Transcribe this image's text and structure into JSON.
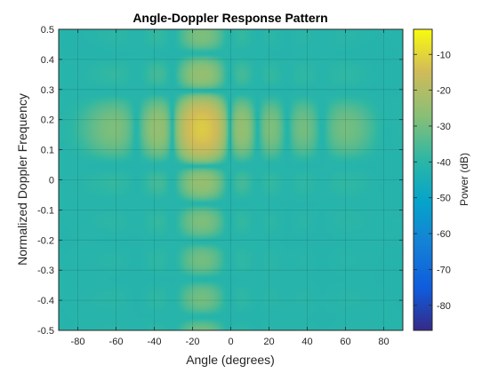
{
  "chart_data": {
    "type": "heatmap",
    "title": "Angle-Doppler Response Pattern",
    "xlabel": "Angle (degrees)",
    "ylabel": "Normalized Doppler Frequency",
    "xlim": [
      -90,
      90
    ],
    "ylim": [
      -0.5,
      0.5
    ],
    "x_ticks": [
      -80,
      -60,
      -40,
      -20,
      0,
      20,
      40,
      60,
      80
    ],
    "y_ticks": [
      -0.5,
      -0.4,
      -0.3,
      -0.2,
      -0.1,
      0,
      0.1,
      0.2,
      0.3,
      0.4,
      0.5
    ],
    "grid": true,
    "colormap": "parula",
    "colorbar": {
      "label": "Power (dB)",
      "clim": [
        -87,
        -3
      ],
      "ticks": [
        -80,
        -70,
        -60,
        -50,
        -40,
        -30,
        -20,
        -10
      ]
    },
    "peak": {
      "angle": -15,
      "doppler": 0.17,
      "power_db": -12
    }
  }
}
